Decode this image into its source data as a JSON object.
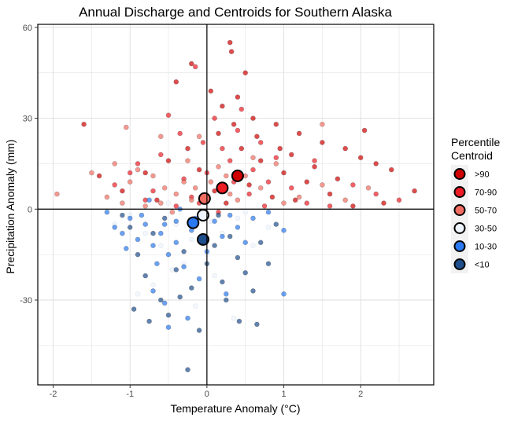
{
  "chart_data": {
    "type": "scatter",
    "title": "Annual Discharge and Centroids for Southern Alaska",
    "xlabel": "Temperature Anomaly (°C)",
    "ylabel": "Precipitation Anomaly (mm)",
    "xlim": [
      -2.2,
      2.95
    ],
    "ylim": [
      -58,
      61
    ],
    "x_ticks": [
      -2,
      -1,
      0,
      1,
      2
    ],
    "y_ticks": [
      -30,
      0,
      30,
      60
    ],
    "grid": true,
    "reference_lines": {
      "x": 0,
      "y": 0
    },
    "legend": {
      "title_lines": [
        "Percentile",
        "Centroid"
      ],
      "position": "right"
    },
    "series": [
      {
        "name": ">90",
        "color": "#d00000",
        "centroid": [
          0.4,
          11
        ],
        "points": [
          [
            0.3,
            55
          ],
          [
            0.32,
            52
          ],
          [
            0.5,
            45
          ],
          [
            0.05,
            39
          ],
          [
            -0.4,
            42
          ],
          [
            -0.2,
            48
          ],
          [
            0.2,
            34
          ],
          [
            0.6,
            30
          ],
          [
            0.9,
            28
          ],
          [
            1.2,
            25
          ],
          [
            1.5,
            22
          ],
          [
            1.8,
            20
          ],
          [
            2.0,
            17
          ],
          [
            2.2,
            15
          ],
          [
            2.4,
            13
          ],
          [
            2.7,
            6
          ],
          [
            2.3,
            2
          ],
          [
            1.9,
            1
          ],
          [
            1.6,
            5
          ],
          [
            1.3,
            9
          ],
          [
            1.0,
            12
          ],
          [
            0.7,
            16
          ],
          [
            0.45,
            20
          ],
          [
            0.15,
            25
          ],
          [
            -0.25,
            20
          ],
          [
            -0.5,
            16
          ],
          [
            -0.8,
            12
          ],
          [
            -1.1,
            6
          ],
          [
            -1.6,
            28
          ],
          [
            -1.4,
            11
          ],
          [
            0.55,
            8
          ],
          [
            0.85,
            4
          ],
          [
            1.1,
            18
          ],
          [
            1.4,
            14
          ],
          [
            2.05,
            26
          ],
          [
            0.35,
            28
          ],
          [
            0.1,
            6
          ],
          [
            -0.1,
            13
          ],
          [
            0.25,
            2
          ],
          [
            1.7,
            10
          ],
          [
            0.65,
            24
          ],
          [
            -0.65,
            3
          ],
          [
            1.15,
            3
          ],
          [
            0.95,
            20
          ],
          [
            0.4,
            37
          ]
        ]
      },
      {
        "name": "70-90",
        "color": "#ee1c25",
        "centroid": [
          0.2,
          7
        ],
        "points": [
          [
            -0.15,
            47
          ],
          [
            0.1,
            30
          ],
          [
            -0.5,
            31
          ],
          [
            0.4,
            26
          ],
          [
            0.7,
            22
          ],
          [
            -0.6,
            18
          ],
          [
            -0.9,
            15
          ],
          [
            -0.3,
            10
          ],
          [
            0.0,
            12
          ],
          [
            0.3,
            16
          ],
          [
            0.55,
            5
          ],
          [
            0.8,
            9
          ],
          [
            1.1,
            7
          ],
          [
            -0.2,
            4
          ],
          [
            -1.2,
            8
          ],
          [
            -0.8,
            3
          ],
          [
            -0.4,
            1
          ],
          [
            0.6,
            13
          ],
          [
            0.9,
            17
          ],
          [
            1.3,
            2
          ],
          [
            1.6,
            1
          ],
          [
            2.2,
            5
          ],
          [
            2.5,
            3
          ],
          [
            0.2,
            20
          ],
          [
            -0.05,
            22
          ],
          [
            0.45,
            33
          ],
          [
            -0.35,
            25
          ],
          [
            -0.7,
            6
          ],
          [
            -1.0,
            12
          ],
          [
            1.4,
            16
          ],
          [
            0.15,
            -1
          ],
          [
            0.75,
            1
          ],
          [
            1.9,
            8
          ],
          [
            -0.1,
            2
          ],
          [
            0.35,
            9
          ]
        ]
      },
      {
        "name": "50-70",
        "color": "#f26d61",
        "centroid": [
          -0.03,
          3.5
        ],
        "points": [
          [
            -1.95,
            5
          ],
          [
            -1.5,
            12
          ],
          [
            -1.3,
            4
          ],
          [
            -1.1,
            2
          ],
          [
            -1.0,
            9
          ],
          [
            -0.9,
            13
          ],
          [
            -0.7,
            11
          ],
          [
            -0.55,
            7
          ],
          [
            -0.4,
            5
          ],
          [
            -0.25,
            16
          ],
          [
            -0.1,
            24
          ],
          [
            -1.05,
            27
          ],
          [
            -0.6,
            24
          ],
          [
            -0.2,
            3
          ],
          [
            0.05,
            9
          ],
          [
            0.3,
            5
          ],
          [
            0.5,
            11
          ],
          [
            0.7,
            7
          ],
          [
            0.9,
            15
          ],
          [
            1.2,
            4
          ],
          [
            1.5,
            8
          ],
          [
            1.8,
            3
          ],
          [
            2.1,
            7
          ],
          [
            -0.8,
            1
          ],
          [
            -0.45,
            -1
          ],
          [
            -0.3,
            9
          ],
          [
            0.15,
            14
          ],
          [
            0.6,
            17
          ],
          [
            1.0,
            2
          ],
          [
            -1.2,
            15
          ],
          [
            -0.15,
            7
          ],
          [
            0.4,
            3
          ],
          [
            1.5,
            28
          ],
          [
            -0.6,
            2
          ],
          [
            0.25,
            11
          ]
        ]
      },
      {
        "name": "30-50",
        "color": "#eef4fb",
        "centroid": [
          -0.05,
          -2
        ],
        "points": [
          [
            -0.8,
            -8
          ],
          [
            -0.6,
            -12
          ],
          [
            -0.4,
            -5
          ],
          [
            -0.2,
            -10
          ],
          [
            0.0,
            -15
          ],
          [
            0.2,
            -8
          ],
          [
            0.4,
            -3
          ],
          [
            -1.0,
            -2
          ],
          [
            -0.5,
            2
          ],
          [
            0.1,
            -22
          ],
          [
            -0.3,
            -18
          ],
          [
            0.35,
            -36
          ],
          [
            -0.7,
            -25
          ],
          [
            0.6,
            -12
          ],
          [
            -1.2,
            -5
          ],
          [
            0.8,
            -6
          ],
          [
            -0.9,
            -28
          ],
          [
            0.05,
            -4
          ],
          [
            -0.15,
            -32
          ],
          [
            0.5,
            -1
          ],
          [
            -0.45,
            -20
          ]
        ]
      },
      {
        "name": "10-30",
        "color": "#2a79f0",
        "centroid": [
          -0.18,
          -4.5
        ],
        "points": [
          [
            -1.3,
            -1
          ],
          [
            -1.2,
            -6
          ],
          [
            -1.1,
            -8
          ],
          [
            -1.0,
            -3
          ],
          [
            -0.9,
            -10
          ],
          [
            -0.8,
            -5
          ],
          [
            -0.7,
            -12
          ],
          [
            -0.6,
            -8
          ],
          [
            -0.5,
            -15
          ],
          [
            -0.4,
            -11
          ],
          [
            -0.3,
            -19
          ],
          [
            -0.2,
            -7
          ],
          [
            -0.1,
            -23
          ],
          [
            0.0,
            -14
          ],
          [
            0.1,
            -4
          ],
          [
            0.2,
            -9
          ],
          [
            0.3,
            -2
          ],
          [
            0.4,
            -6
          ],
          [
            0.5,
            -11
          ],
          [
            0.6,
            -3
          ],
          [
            0.8,
            -1
          ],
          [
            1.0,
            -7
          ],
          [
            -0.7,
            -27
          ],
          [
            -0.55,
            -31
          ],
          [
            -0.5,
            -39
          ],
          [
            -0.25,
            -36
          ],
          [
            -0.85,
            -2
          ],
          [
            -0.35,
            0
          ],
          [
            -1.05,
            -13
          ],
          [
            -0.65,
            -18
          ],
          [
            0.25,
            -28
          ],
          [
            -0.15,
            -3
          ],
          [
            -0.4,
            -4
          ],
          [
            -0.75,
            3
          ],
          [
            1.0,
            -28
          ],
          [
            -0.55,
            -5
          ]
        ]
      },
      {
        "name": "<10",
        "color": "#1f4e8c",
        "centroid": [
          -0.05,
          -10
        ],
        "points": [
          [
            -1.0,
            -6
          ],
          [
            -0.9,
            -15
          ],
          [
            -0.8,
            -22
          ],
          [
            -0.7,
            -8
          ],
          [
            -0.6,
            -30
          ],
          [
            -0.5,
            -35
          ],
          [
            -0.4,
            -20
          ],
          [
            -0.3,
            -14
          ],
          [
            -0.2,
            -26
          ],
          [
            -0.1,
            -40
          ],
          [
            0.0,
            -18
          ],
          [
            0.1,
            -12
          ],
          [
            0.2,
            -24
          ],
          [
            0.3,
            -9
          ],
          [
            0.4,
            -16
          ],
          [
            0.5,
            -21
          ],
          [
            0.6,
            -27
          ],
          [
            0.7,
            -11
          ],
          [
            0.8,
            -18
          ],
          [
            0.9,
            -5
          ],
          [
            -0.25,
            -53
          ],
          [
            -1.1,
            -2
          ],
          [
            -0.95,
            -33
          ],
          [
            -0.75,
            -37
          ],
          [
            0.65,
            -38
          ],
          [
            0.42,
            -37
          ],
          [
            -0.55,
            -3
          ],
          [
            0.15,
            -2
          ],
          [
            -0.35,
            -29
          ],
          [
            0.25,
            -30
          ]
        ]
      }
    ]
  }
}
